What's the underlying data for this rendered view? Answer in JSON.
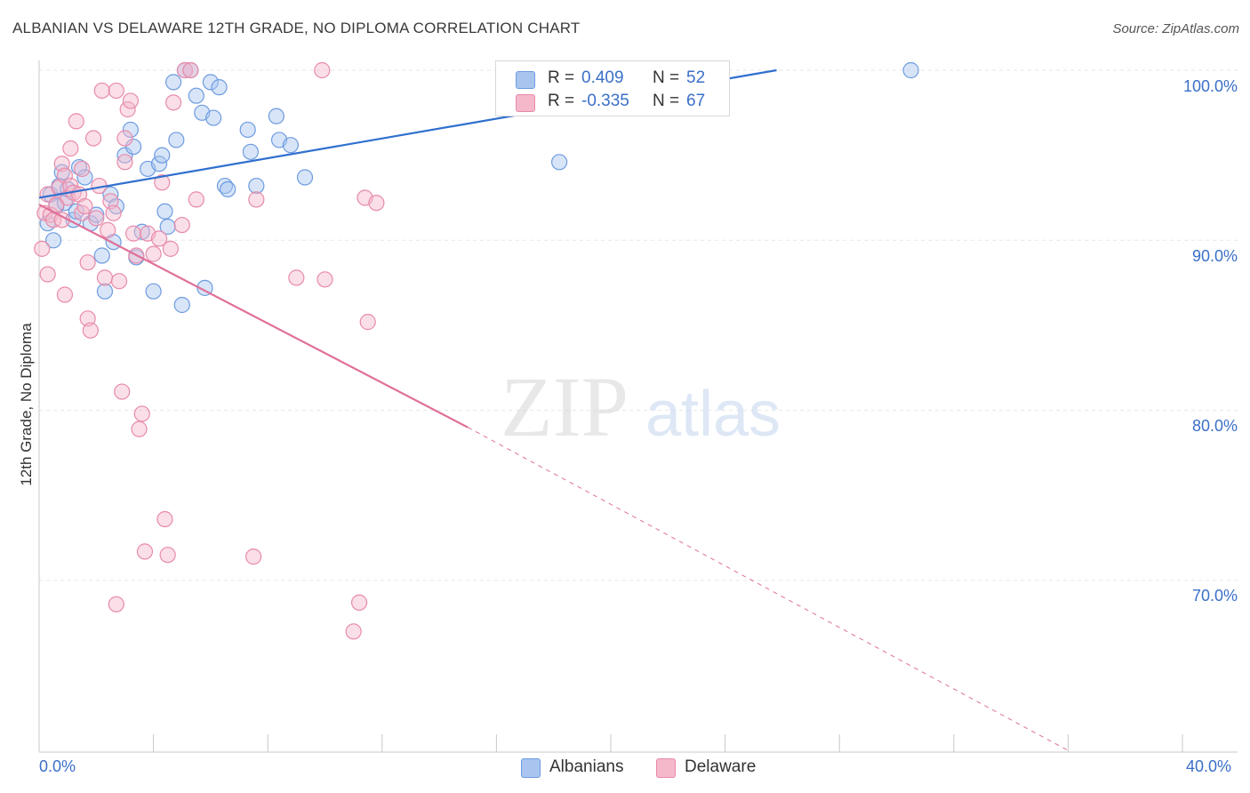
{
  "title": "ALBANIAN VS DELAWARE 12TH GRADE, NO DIPLOMA CORRELATION CHART",
  "source": "Source: ZipAtlas.com",
  "watermark": {
    "zip": "ZIP",
    "atlas": "atlas"
  },
  "legend": {
    "r_label": "R =",
    "n_label": "N =",
    "rows": [
      {
        "r": "0.409",
        "n": "52"
      },
      {
        "r": "-0.335",
        "n": "67"
      }
    ]
  },
  "colors": {
    "blue_fill": "#a9c5ef",
    "blue_stroke": "#6d9be0",
    "blue_line": "#2f6fcf",
    "pink_fill": "#f5b8cb",
    "pink_stroke": "#e88aa9",
    "pink_line": "#e0709a",
    "tick_label": "#3a6fc8",
    "grid": "#e6e6e6"
  },
  "chart_data": {
    "type": "scatter",
    "title": "ALBANIAN VS DELAWARE 12TH GRADE, NO DIPLOMA CORRELATION CHART",
    "xlabel": "",
    "ylabel": "12th Grade, No Diploma",
    "xlim": [
      0,
      0.4
    ],
    "ylim": [
      0.6,
      1.0
    ],
    "x_tick_labels": [
      "0.0%",
      "40.0%"
    ],
    "y_ticks": [
      {
        "value": 1.0,
        "label": "100.0%"
      },
      {
        "value": 0.9,
        "label": "90.0%"
      },
      {
        "value": 0.8,
        "label": "80.0%"
      },
      {
        "value": 0.7,
        "label": "70.0%"
      }
    ],
    "grid": true,
    "legend_position": "top-center",
    "series": [
      {
        "name": "Albanians",
        "color": "#a9c5ef",
        "r": 0.409,
        "n": 52,
        "trend": {
          "x0": 0.0,
          "y0": 0.925,
          "x1": 0.258,
          "y1": 1.0
        },
        "points": [
          [
            0.003,
            0.91
          ],
          [
            0.004,
            0.927
          ],
          [
            0.005,
            0.9
          ],
          [
            0.006,
            0.92
          ],
          [
            0.007,
            0.932
          ],
          [
            0.008,
            0.94
          ],
          [
            0.009,
            0.922
          ],
          [
            0.01,
            0.93
          ],
          [
            0.012,
            0.912
          ],
          [
            0.013,
            0.917
          ],
          [
            0.014,
            0.943
          ],
          [
            0.016,
            0.937
          ],
          [
            0.018,
            0.91
          ],
          [
            0.02,
            0.915
          ],
          [
            0.022,
            0.891
          ],
          [
            0.023,
            0.87
          ],
          [
            0.025,
            0.927
          ],
          [
            0.026,
            0.899
          ],
          [
            0.027,
            0.92
          ],
          [
            0.03,
            0.95
          ],
          [
            0.032,
            0.965
          ],
          [
            0.033,
            0.955
          ],
          [
            0.034,
            0.89
          ],
          [
            0.036,
            0.905
          ],
          [
            0.038,
            0.942
          ],
          [
            0.04,
            0.87
          ],
          [
            0.042,
            0.945
          ],
          [
            0.043,
            0.95
          ],
          [
            0.044,
            0.917
          ],
          [
            0.045,
            0.908
          ],
          [
            0.047,
            0.993
          ],
          [
            0.048,
            0.959
          ],
          [
            0.05,
            0.862
          ],
          [
            0.051,
            1.0
          ],
          [
            0.053,
            1.0
          ],
          [
            0.055,
            0.985
          ],
          [
            0.057,
            0.975
          ],
          [
            0.058,
            0.872
          ],
          [
            0.06,
            0.993
          ],
          [
            0.061,
            0.972
          ],
          [
            0.063,
            0.99
          ],
          [
            0.065,
            0.932
          ],
          [
            0.066,
            0.93
          ],
          [
            0.073,
            0.965
          ],
          [
            0.074,
            0.952
          ],
          [
            0.076,
            0.932
          ],
          [
            0.083,
            0.973
          ],
          [
            0.084,
            0.959
          ],
          [
            0.088,
            0.956
          ],
          [
            0.093,
            0.937
          ],
          [
            0.182,
            0.946
          ],
          [
            0.305,
            1.0
          ]
        ]
      },
      {
        "name": "Delaware",
        "color": "#f5b8cb",
        "r": -0.335,
        "n": 67,
        "trend": {
          "x0": 0.0,
          "y0": 0.921,
          "x1": 0.15,
          "y1": 0.79,
          "dash_x1": 0.36,
          "dash_y1": 0.6
        },
        "points": [
          [
            0.001,
            0.895
          ],
          [
            0.002,
            0.916
          ],
          [
            0.003,
            0.927
          ],
          [
            0.003,
            0.88
          ],
          [
            0.004,
            0.915
          ],
          [
            0.005,
            0.912
          ],
          [
            0.006,
            0.921
          ],
          [
            0.007,
            0.931
          ],
          [
            0.008,
            0.945
          ],
          [
            0.008,
            0.912
          ],
          [
            0.009,
            0.938
          ],
          [
            0.009,
            0.868
          ],
          [
            0.01,
            0.925
          ],
          [
            0.011,
            0.932
          ],
          [
            0.011,
            0.954
          ],
          [
            0.012,
            0.928
          ],
          [
            0.013,
            0.97
          ],
          [
            0.014,
            0.927
          ],
          [
            0.015,
            0.942
          ],
          [
            0.015,
            0.916
          ],
          [
            0.016,
            0.92
          ],
          [
            0.017,
            0.887
          ],
          [
            0.017,
            0.854
          ],
          [
            0.018,
            0.847
          ],
          [
            0.019,
            0.96
          ],
          [
            0.02,
            0.913
          ],
          [
            0.021,
            0.932
          ],
          [
            0.022,
            0.988
          ],
          [
            0.023,
            0.878
          ],
          [
            0.024,
            0.906
          ],
          [
            0.025,
            0.923
          ],
          [
            0.026,
            0.916
          ],
          [
            0.027,
            0.988
          ],
          [
            0.027,
            0.686
          ],
          [
            0.028,
            0.876
          ],
          [
            0.029,
            0.811
          ],
          [
            0.03,
            0.946
          ],
          [
            0.03,
            0.96
          ],
          [
            0.031,
            0.977
          ],
          [
            0.032,
            0.982
          ],
          [
            0.033,
            0.904
          ],
          [
            0.034,
            0.891
          ],
          [
            0.035,
            0.789
          ],
          [
            0.036,
            0.798
          ],
          [
            0.037,
            0.717
          ],
          [
            0.038,
            0.904
          ],
          [
            0.04,
            0.892
          ],
          [
            0.042,
            0.901
          ],
          [
            0.043,
            0.934
          ],
          [
            0.044,
            0.736
          ],
          [
            0.045,
            0.715
          ],
          [
            0.046,
            0.895
          ],
          [
            0.047,
            0.981
          ],
          [
            0.05,
            0.909
          ],
          [
            0.051,
            1.0
          ],
          [
            0.053,
            1.0
          ],
          [
            0.055,
            0.924
          ],
          [
            0.075,
            0.714
          ],
          [
            0.076,
            0.924
          ],
          [
            0.09,
            0.878
          ],
          [
            0.099,
            1.0
          ],
          [
            0.1,
            0.877
          ],
          [
            0.11,
            0.67
          ],
          [
            0.112,
            0.687
          ],
          [
            0.114,
            0.925
          ],
          [
            0.115,
            0.852
          ],
          [
            0.118,
            0.922
          ]
        ]
      }
    ]
  }
}
